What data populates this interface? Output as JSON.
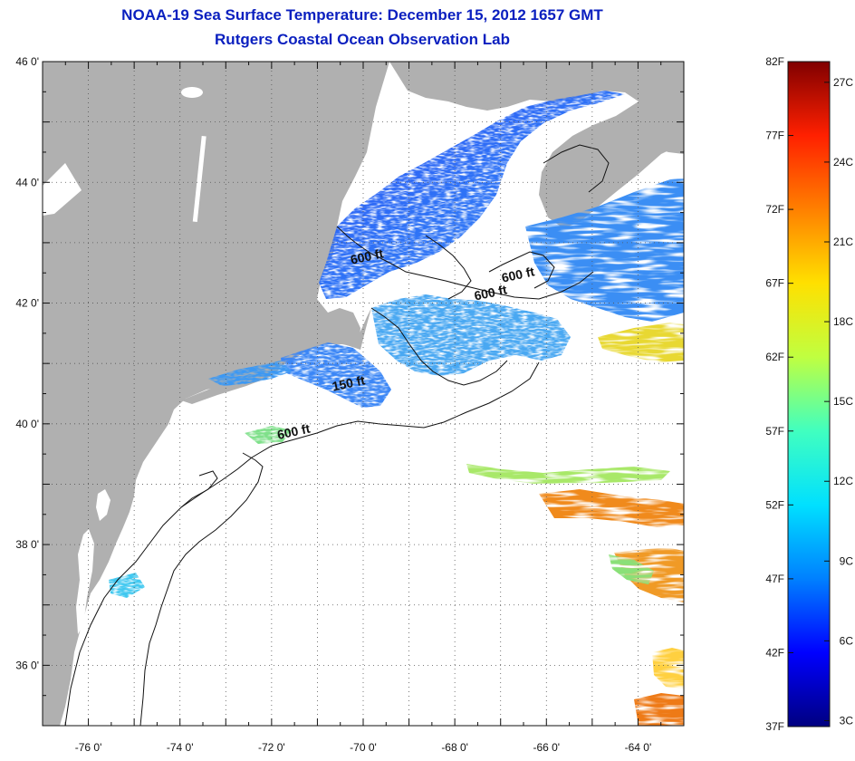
{
  "title": {
    "line1": "NOAA-19 Sea Surface Temperature:  December 15, 2012 1657 GMT",
    "line2": "Rutgers Coastal Ocean Observation Lab"
  },
  "map": {
    "lat_range": [
      35,
      46
    ],
    "lon_range": [
      -77,
      -63
    ],
    "lat_ticks": [
      {
        "value": 46,
        "label": "46 0'"
      },
      {
        "value": 44,
        "label": "44 0'"
      },
      {
        "value": 42,
        "label": "42 0'"
      },
      {
        "value": 40,
        "label": "40 0'"
      },
      {
        "value": 38,
        "label": "38 0'"
      },
      {
        "value": 36,
        "label": "36 0'"
      }
    ],
    "lon_ticks": [
      {
        "value": -76,
        "label": "-76 0'"
      },
      {
        "value": -74,
        "label": "-74 0'"
      },
      {
        "value": -72,
        "label": "-72 0'"
      },
      {
        "value": -70,
        "label": "-70 0'"
      },
      {
        "value": -68,
        "label": "-68 0'"
      },
      {
        "value": -66,
        "label": "-66 0'"
      },
      {
        "value": -64,
        "label": "-64 0'"
      }
    ],
    "contour_labels": [
      {
        "text": "600 ft",
        "lon": -69.9,
        "lat": 42.7
      },
      {
        "text": "600 ft",
        "lon": -66.6,
        "lat": 42.4
      },
      {
        "text": "600 ft",
        "lon": -67.2,
        "lat": 42.1
      },
      {
        "text": "150 ft",
        "lon": -70.3,
        "lat": 40.6
      },
      {
        "text": "600 ft",
        "lon": -71.5,
        "lat": 39.8
      }
    ],
    "colors": {
      "land": "#b0b0b0",
      "ocean_no_data": "#ffffff",
      "grid": "#666666"
    }
  },
  "colorbar": {
    "min_f": 37,
    "max_f": 82,
    "fahrenheit_labels": [
      {
        "value": 82,
        "label": "82F"
      },
      {
        "value": 77,
        "label": "77F"
      },
      {
        "value": 72,
        "label": "72F"
      },
      {
        "value": 67,
        "label": "67F"
      },
      {
        "value": 62,
        "label": "62F"
      },
      {
        "value": 57,
        "label": "57F"
      },
      {
        "value": 52,
        "label": "52F"
      },
      {
        "value": 47,
        "label": "47F"
      },
      {
        "value": 42,
        "label": "42F"
      },
      {
        "value": 37,
        "label": "37F"
      }
    ],
    "celsius_labels": [
      {
        "value": 27,
        "label": "27C"
      },
      {
        "value": 24,
        "label": "24C"
      },
      {
        "value": 21,
        "label": "21C"
      },
      {
        "value": 18,
        "label": "18C"
      },
      {
        "value": 15,
        "label": "15C"
      },
      {
        "value": 12,
        "label": "12C"
      },
      {
        "value": 9,
        "label": "9C"
      },
      {
        "value": 6,
        "label": "6C"
      },
      {
        "value": 3,
        "label": "3C"
      }
    ],
    "gradient_stops": [
      "#000080",
      "#0000ff",
      "#0080ff",
      "#00e0ff",
      "#40ffc0",
      "#c0ff40",
      "#ffe000",
      "#ff8000",
      "#ff2000",
      "#800000"
    ]
  }
}
